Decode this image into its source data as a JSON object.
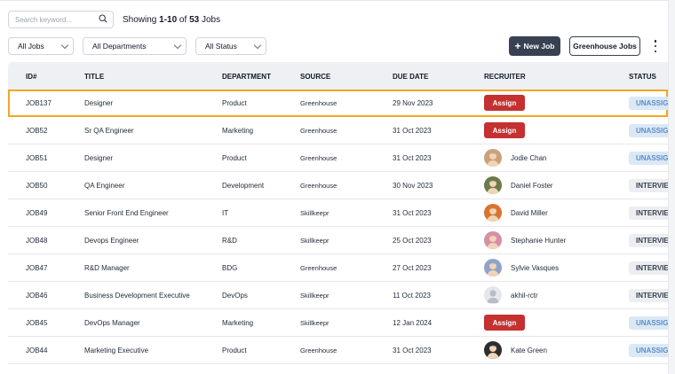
{
  "search": {
    "placeholder": "Search keyword...",
    "value": ""
  },
  "summary": {
    "prefix": "Showing ",
    "range": "1-10",
    "of": " of ",
    "total": "53",
    "suffix": " Jobs"
  },
  "filters": [
    {
      "label": "All Jobs",
      "width": 74
    },
    {
      "label": "All Departments",
      "width": 117
    },
    {
      "label": "All Status",
      "width": 80
    }
  ],
  "toolbar": {
    "new_job": "New Job",
    "greenhouse_jobs": "Greenhouse Jobs"
  },
  "columns": {
    "id": "ID#",
    "title": "TITLE",
    "department": "DEPARTMENT",
    "source": "SOURCE",
    "due_date": "DUE DATE",
    "recruiter": "RECRUITER",
    "status": "STATUS"
  },
  "assign_label": "Assign",
  "colors": {
    "assign": "#c53030",
    "highlight": "#f5a623",
    "primary": "#374151"
  },
  "rows": [
    {
      "id": "JOB137",
      "title": "Designer",
      "department": "Product",
      "source": "Greenhouse",
      "due": "29 Nov 2023",
      "recruiter": null,
      "status": "UNASSIGNED",
      "status_tone": "blue",
      "selected": true
    },
    {
      "id": "JOB52",
      "title": "Sr QA Engineer",
      "department": "Marketing",
      "source": "Greenhouse",
      "due": "31 Oct 2023",
      "recruiter": null,
      "status": "UNASSIGNED",
      "status_tone": "blue"
    },
    {
      "id": "JOB51",
      "title": "Designer",
      "department": "Product",
      "source": "Greenhouse",
      "due": "31 Oct 2023",
      "recruiter": {
        "name": "Jodie Chan",
        "avatar": "#c9a27a"
      },
      "status": "UNASSIGNED",
      "status_tone": "blue"
    },
    {
      "id": "JOB50",
      "title": "QA Engineer",
      "department": "Development",
      "source": "Greenhouse",
      "due": "30 Nov 2023",
      "recruiter": {
        "name": "Daniel Foster",
        "avatar": "#6b7a4a"
      },
      "status": "INTERVIEW",
      "status_tone": "gray"
    },
    {
      "id": "JOB49",
      "title": "Senior Front End Engineer",
      "department": "IT",
      "source": "Skillkeepr",
      "due": "31 Oct 2023",
      "recruiter": {
        "name": "David Miller",
        "avatar": "#d9732e"
      },
      "status": "INTERVIEW",
      "status_tone": "gray"
    },
    {
      "id": "JOB48",
      "title": "Devops Engineer",
      "department": "R&D",
      "source": "Skillkeepr",
      "due": "25 Oct 2023",
      "recruiter": {
        "name": "Stephanie Hunter",
        "avatar": "#d68fa5"
      },
      "status": "INTERVIEW",
      "status_tone": "gray"
    },
    {
      "id": "JOB47",
      "title": "R&D Manager",
      "department": "BDG",
      "source": "Greenhouse",
      "due": "27 Oct 2023",
      "recruiter": {
        "name": "Sylvie Vasques",
        "avatar": "#8fa3c9"
      },
      "status": "INTERVIEW",
      "status_tone": "gray"
    },
    {
      "id": "JOB46",
      "title": "Business Development Executive",
      "department": "DevOps",
      "source": "Skillkeepr",
      "due": "11 Oct 2023",
      "recruiter": {
        "name": "akhil-rctr",
        "avatar": "#d1d5db",
        "placeholder": true
      },
      "status": "INTERVIEW",
      "status_tone": "gray"
    },
    {
      "id": "JOB45",
      "title": "DevOps Manager",
      "department": "Marketing",
      "source": "Skillkeepr",
      "due": "12 Jan 2024",
      "recruiter": null,
      "status": "UNASSIGNED",
      "status_tone": "blue"
    },
    {
      "id": "JOB44",
      "title": "Marketing Executive",
      "department": "Product",
      "source": "Greenhouse",
      "due": "31 Oct 2023",
      "recruiter": {
        "name": "Kate Green",
        "avatar": "#2d2d2d"
      },
      "status": "UNASSIGNED",
      "status_tone": "blue"
    }
  ]
}
